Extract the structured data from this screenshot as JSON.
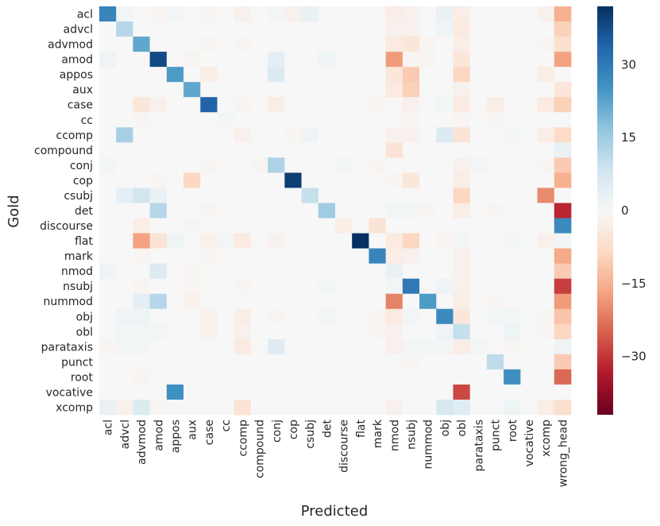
{
  "chart_data": {
    "type": "heatmap",
    "title": "",
    "xlabel": "Predicted",
    "ylabel": "Gold",
    "y_categories": [
      "acl",
      "advcl",
      "advmod",
      "amod",
      "appos",
      "aux",
      "case",
      "cc",
      "ccomp",
      "compound",
      "conj",
      "cop",
      "csubj",
      "det",
      "discourse",
      "flat",
      "mark",
      "nmod",
      "nsubj",
      "nummod",
      "obj",
      "obl",
      "parataxis",
      "punct",
      "root",
      "vocative",
      "xcomp"
    ],
    "x_categories": [
      "acl",
      "advcl",
      "advmod",
      "amod",
      "appos",
      "aux",
      "case",
      "cc",
      "ccomp",
      "compound",
      "conj",
      "cop",
      "csubj",
      "det",
      "discourse",
      "flat",
      "mark",
      "nmod",
      "nsubj",
      "nummod",
      "obj",
      "obl",
      "parataxis",
      "punct",
      "root",
      "vocative",
      "xcomp",
      "wrong_head"
    ],
    "colorbar": {
      "range": [
        -42,
        42
      ],
      "ticks": [
        30,
        15,
        0,
        -15,
        -30
      ],
      "tick_labels": [
        "30",
        "15",
        "0",
        "−15",
        "−30"
      ],
      "colormap": "RdBu"
    },
    "values": [
      [
        28,
        1,
        0,
        -1,
        1,
        0,
        -1,
        0,
        -2,
        0,
        1,
        -2,
        3,
        0,
        0,
        0,
        0,
        -3,
        -2,
        0,
        3,
        -3,
        0,
        0,
        0,
        0,
        -2,
        -15
      ],
      [
        0,
        12,
        0,
        0,
        0,
        0,
        0,
        0,
        0,
        0,
        0,
        0,
        0,
        0,
        0,
        0,
        0,
        -2,
        -2,
        0,
        2,
        -4,
        0,
        0,
        0,
        0,
        0,
        -10
      ],
      [
        0,
        0,
        22,
        0,
        0,
        0,
        -1,
        0,
        -1,
        0,
        0,
        0,
        0,
        0,
        0,
        0,
        0,
        -4,
        -5,
        -1,
        0,
        -3,
        0,
        0,
        0,
        0,
        -1,
        -7
      ],
      [
        2,
        0,
        0,
        38,
        0,
        -1,
        0,
        0,
        0,
        0,
        4,
        0,
        0,
        2,
        0,
        0,
        0,
        -18,
        -1,
        -1,
        0,
        -5,
        0,
        0,
        0,
        0,
        0,
        -17
      ],
      [
        0,
        0,
        0,
        0,
        24,
        0,
        -3,
        0,
        0,
        0,
        6,
        0,
        0,
        0,
        0,
        0,
        0,
        -5,
        -11,
        0,
        0,
        -9,
        0,
        0,
        0,
        0,
        -3,
        0
      ],
      [
        0,
        0,
        0,
        0,
        0,
        22,
        0,
        0,
        0,
        0,
        0,
        0,
        0,
        0,
        0,
        0,
        0,
        -4,
        -10,
        0,
        0,
        -2,
        0,
        0,
        0,
        0,
        0,
        -5
      ],
      [
        0,
        0,
        -5,
        -2,
        0,
        0,
        34,
        0,
        -1,
        0,
        -3,
        0,
        0,
        0,
        0,
        0,
        -1,
        0,
        -2,
        0,
        1,
        -4,
        0,
        -3,
        0,
        0,
        -4,
        -10
      ],
      [
        0,
        0,
        -1,
        0,
        0,
        0,
        0,
        1,
        0,
        0,
        0,
        0,
        0,
        0,
        0,
        0,
        0,
        0,
        -1,
        0,
        0,
        -1,
        0,
        -1,
        0,
        0,
        0,
        0
      ],
      [
        0,
        14,
        0,
        0,
        0,
        0,
        0,
        0,
        -2,
        0,
        0,
        -1,
        2,
        0,
        0,
        0,
        0,
        -2,
        -2,
        0,
        6,
        -6,
        0,
        0,
        1,
        0,
        -3,
        -8
      ],
      [
        0,
        0,
        0,
        0,
        0,
        0,
        0,
        0,
        0,
        0,
        0,
        0,
        0,
        0,
        0,
        0,
        0,
        -6,
        0,
        0,
        0,
        0,
        0,
        0,
        0,
        0,
        0,
        3
      ],
      [
        1,
        0,
        0,
        0,
        0,
        0,
        -1,
        0,
        0,
        -1,
        13,
        0,
        0,
        0,
        1,
        0,
        -1,
        0,
        0,
        0,
        0,
        -2,
        1,
        0,
        0,
        0,
        -1,
        -11
      ],
      [
        0,
        0,
        0,
        -1,
        0,
        -9,
        0,
        0,
        0,
        0,
        0,
        40,
        0,
        0,
        0,
        0,
        0,
        -1,
        -5,
        0,
        0,
        -3,
        0,
        0,
        0,
        0,
        0,
        -15
      ],
      [
        0,
        4,
        8,
        3,
        0,
        0,
        0,
        0,
        0,
        0,
        0,
        0,
        10,
        0,
        0,
        0,
        0,
        0,
        0,
        0,
        0,
        -9,
        0,
        0,
        0,
        0,
        -20,
        0
      ],
      [
        0,
        0,
        0,
        12,
        0,
        0,
        -1,
        0,
        0,
        0,
        0,
        0,
        0,
        15,
        0,
        0,
        0,
        1,
        1,
        -1,
        0,
        -3,
        0,
        -1,
        0,
        0,
        0,
        -32
      ],
      [
        0,
        0,
        -3,
        0,
        0,
        1,
        0,
        0,
        0,
        0,
        0,
        0,
        0,
        0,
        -3,
        0,
        -6,
        0,
        0,
        0,
        0,
        0,
        0,
        0,
        0,
        0,
        0,
        27
      ],
      [
        0,
        0,
        -17,
        -6,
        2,
        0,
        -2,
        1,
        -4,
        0,
        -2,
        0,
        0,
        0,
        0,
        42,
        0,
        -4,
        -9,
        0,
        -1,
        1,
        0,
        0,
        1,
        0,
        -2,
        1
      ],
      [
        0,
        0,
        -1,
        0,
        0,
        0,
        -1,
        0,
        0,
        0,
        0,
        0,
        0,
        0,
        0,
        0,
        28,
        -3,
        -2,
        0,
        0,
        -2,
        0,
        0,
        0,
        0,
        0,
        -16
      ],
      [
        2,
        0,
        0,
        6,
        0,
        -1,
        0,
        0,
        0,
        0,
        0,
        0,
        0,
        0,
        0,
        0,
        0,
        3,
        0,
        0,
        0,
        -2,
        0,
        0,
        0,
        0,
        0,
        -11
      ],
      [
        0,
        0,
        -1,
        0,
        0,
        -1,
        0,
        0,
        -1,
        0,
        0,
        0,
        0,
        1,
        0,
        0,
        0,
        1,
        30,
        0,
        2,
        -2,
        0,
        0,
        0,
        0,
        0,
        -29
      ],
      [
        0,
        0,
        4,
        12,
        0,
        -2,
        0,
        0,
        0,
        0,
        0,
        0,
        0,
        0,
        0,
        0,
        0,
        -21,
        0,
        24,
        0,
        -3,
        0,
        -1,
        0,
        0,
        0,
        -18
      ],
      [
        0,
        2,
        2,
        0,
        0,
        0,
        -2,
        0,
        -3,
        0,
        -1,
        0,
        0,
        1,
        0,
        0,
        -1,
        -4,
        1,
        0,
        27,
        -5,
        0,
        1,
        1,
        0,
        -1,
        -12
      ],
      [
        0,
        1,
        1,
        1,
        0,
        0,
        -2,
        0,
        -2,
        0,
        0,
        0,
        0,
        0,
        0,
        0,
        -1,
        -2,
        0,
        0,
        2,
        10,
        0,
        0,
        2,
        0,
        -1,
        -9
      ],
      [
        -1,
        1,
        1,
        0,
        0,
        0,
        0,
        0,
        -4,
        0,
        5,
        0,
        0,
        0,
        0,
        0,
        0,
        -2,
        1,
        1,
        1,
        -3,
        1,
        0,
        -1,
        0,
        0,
        2
      ],
      [
        0,
        0,
        0,
        0,
        0,
        0,
        0,
        0,
        0,
        0,
        0,
        0,
        0,
        0,
        0,
        0,
        0,
        0,
        -1,
        0,
        0,
        0,
        0,
        11,
        0,
        0,
        0,
        -11
      ],
      [
        0,
        0,
        -1,
        0,
        0,
        0,
        0,
        0,
        0,
        0,
        0,
        0,
        0,
        0,
        0,
        0,
        0,
        0,
        0,
        0,
        0,
        0,
        0,
        0,
        26,
        0,
        0,
        -24
      ],
      [
        0,
        0,
        0,
        0,
        26,
        0,
        0,
        0,
        0,
        0,
        0,
        0,
        0,
        0,
        0,
        0,
        0,
        0,
        0,
        0,
        0,
        -28,
        0,
        0,
        0,
        0,
        0,
        0
      ],
      [
        3,
        -2,
        6,
        -1,
        0,
        0,
        0,
        0,
        -6,
        0,
        0,
        0,
        0,
        0,
        0,
        0,
        0,
        -2,
        0,
        0,
        7,
        5,
        0,
        0,
        2,
        0,
        -3,
        -7
      ]
    ]
  }
}
